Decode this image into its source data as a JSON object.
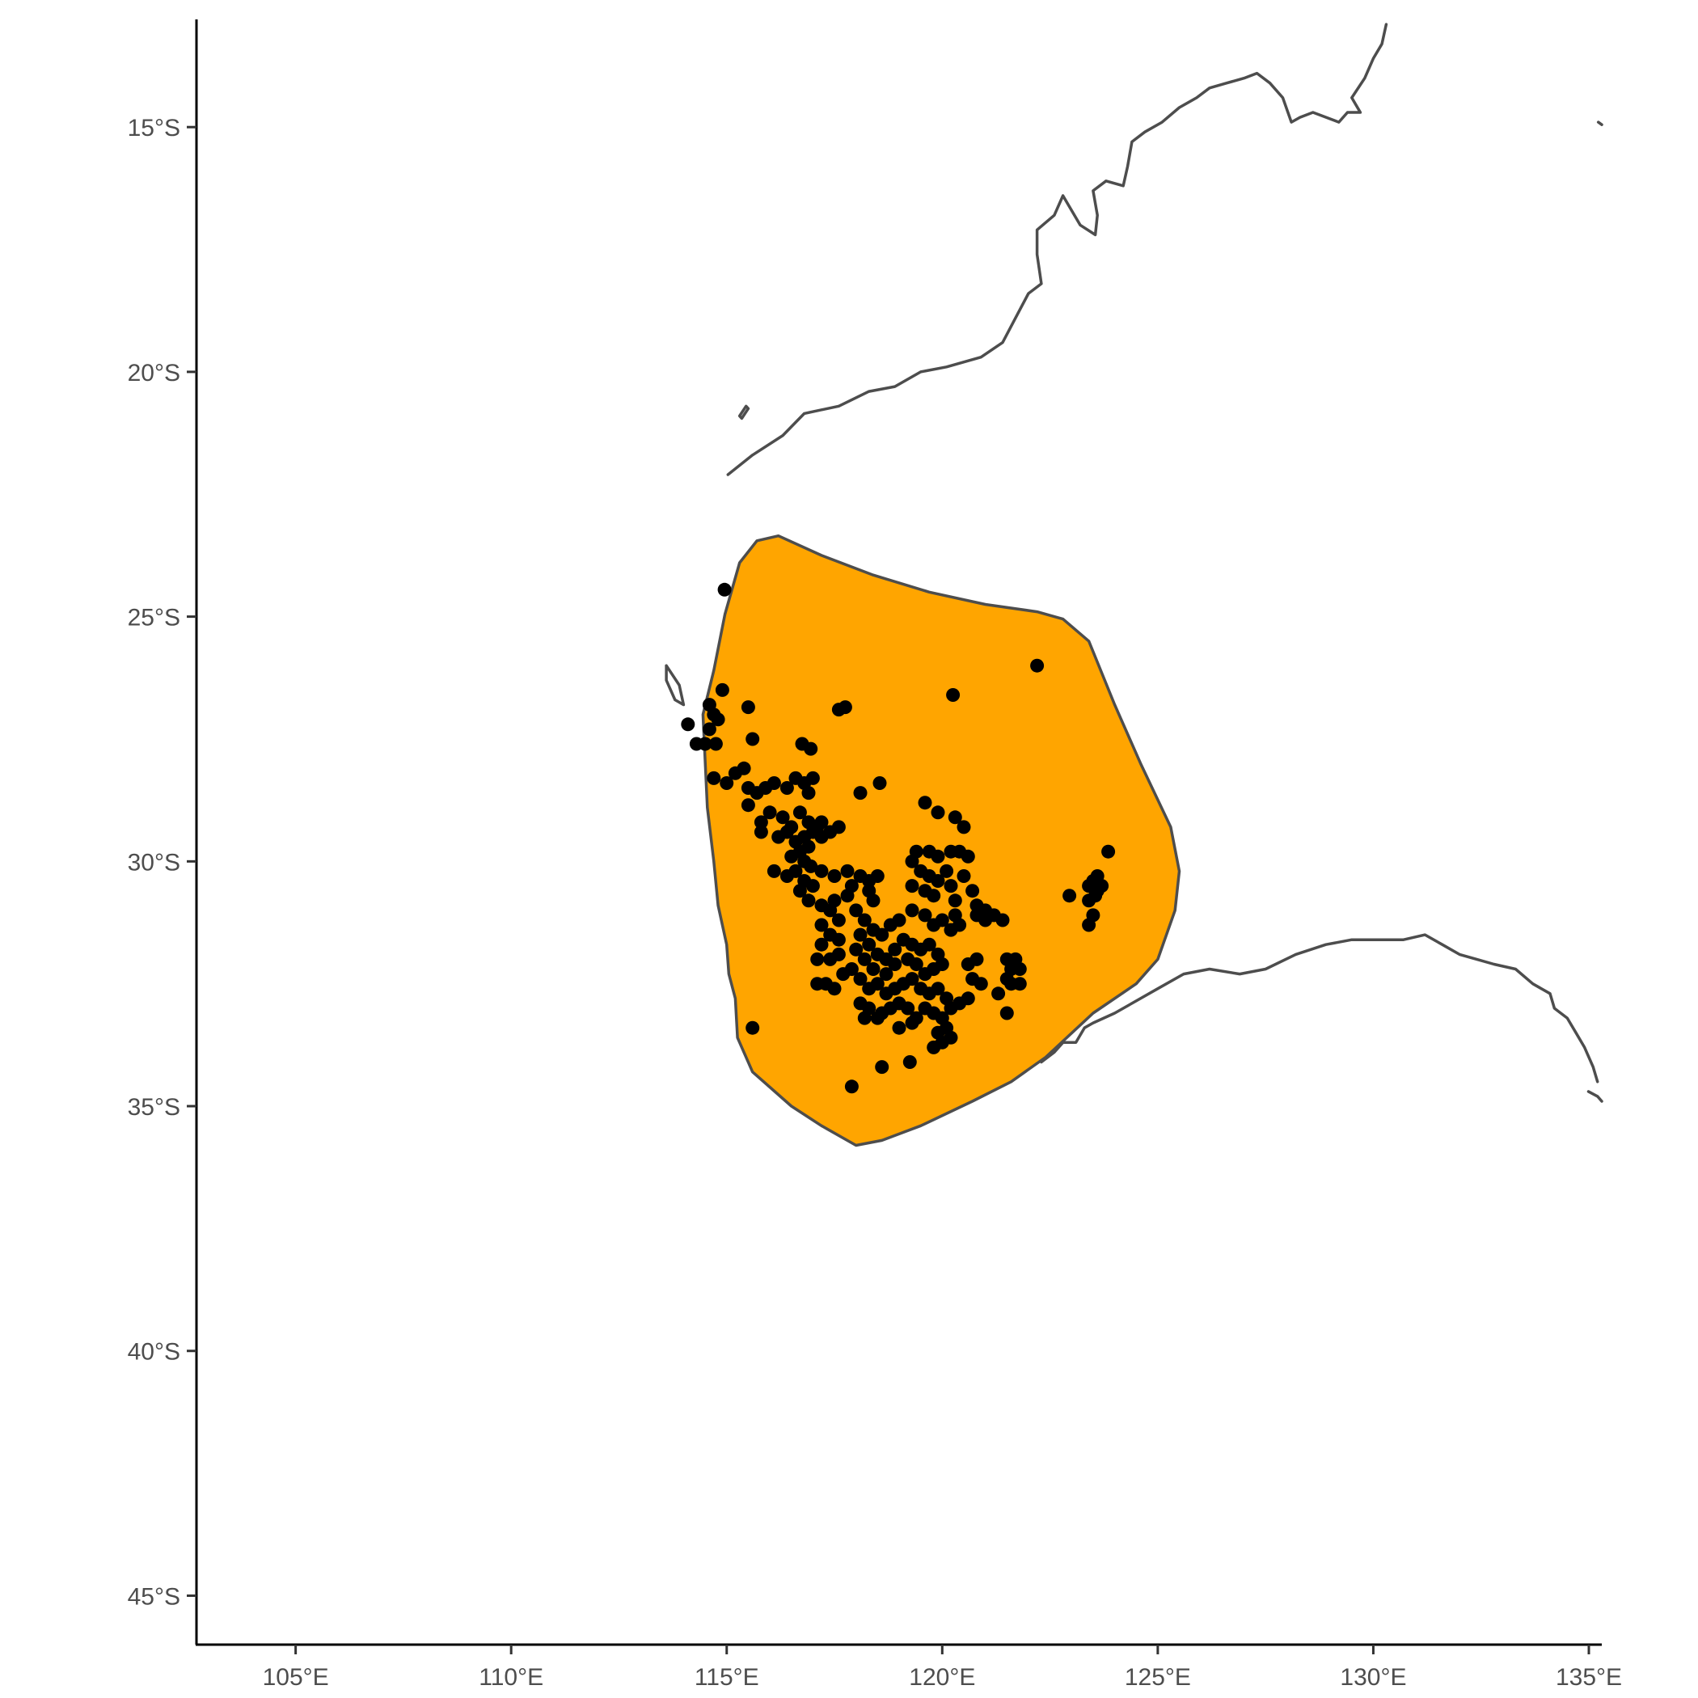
{
  "chart_data": {
    "type": "scatter",
    "title": "",
    "xlabel": "",
    "ylabel": "",
    "xlim": [
      102.7,
      135.3
    ],
    "ylim": [
      -46.0,
      -12.8
    ],
    "x_ticks": [
      {
        "value": 105,
        "label": "105°E"
      },
      {
        "value": 110,
        "label": "110°E"
      },
      {
        "value": 115,
        "label": "115°E"
      },
      {
        "value": 120,
        "label": "120°E"
      },
      {
        "value": 125,
        "label": "125°E"
      },
      {
        "value": 130,
        "label": "130°E"
      },
      {
        "value": 135,
        "label": "135°E"
      }
    ],
    "y_ticks": [
      {
        "value": -15,
        "label": "15°S"
      },
      {
        "value": -20,
        "label": "20°S"
      },
      {
        "value": -25,
        "label": "25°S"
      },
      {
        "value": -30,
        "label": "30°S"
      },
      {
        "value": -35,
        "label": "35°S"
      },
      {
        "value": -40,
        "label": "40°S"
      },
      {
        "value": -45,
        "label": "45°S"
      }
    ],
    "colors": {
      "hull_fill": "#FFA500",
      "outline": "#4d4d4d",
      "points": "#000000",
      "axis": "#000000",
      "tick_label": "#4d4d4d"
    },
    "coastline": [
      [
        115.03,
        -22.1
      ],
      [
        115.6,
        -21.7
      ],
      [
        116.3,
        -21.3
      ],
      [
        116.8,
        -20.85
      ],
      [
        117.6,
        -20.7
      ],
      [
        118.3,
        -20.4
      ],
      [
        118.9,
        -20.3
      ],
      [
        119.5,
        -20.0
      ],
      [
        120.1,
        -19.9
      ],
      [
        120.9,
        -19.7
      ],
      [
        121.4,
        -19.4
      ],
      [
        121.7,
        -18.9
      ],
      [
        122.0,
        -18.4
      ],
      [
        122.3,
        -18.2
      ],
      [
        122.2,
        -17.6
      ],
      [
        122.2,
        -17.1
      ],
      [
        122.6,
        -16.8
      ],
      [
        122.8,
        -16.4
      ],
      [
        123.2,
        -17.0
      ],
      [
        123.55,
        -17.2
      ],
      [
        123.6,
        -16.8
      ],
      [
        123.5,
        -16.3
      ],
      [
        123.8,
        -16.1
      ],
      [
        124.2,
        -16.2
      ],
      [
        124.3,
        -15.8
      ],
      [
        124.4,
        -15.3
      ],
      [
        124.7,
        -15.1
      ],
      [
        125.1,
        -14.9
      ],
      [
        125.5,
        -14.6
      ],
      [
        125.9,
        -14.4
      ],
      [
        126.2,
        -14.2
      ],
      [
        126.6,
        -14.1
      ],
      [
        127.0,
        -14.0
      ],
      [
        127.3,
        -13.9
      ],
      [
        127.6,
        -14.1
      ],
      [
        127.9,
        -14.4
      ],
      [
        128.1,
        -14.9
      ],
      [
        128.3,
        -14.8
      ],
      [
        128.6,
        -14.7
      ],
      [
        129.2,
        -14.9
      ],
      [
        129.4,
        -14.7
      ],
      [
        129.7,
        -14.7
      ],
      [
        129.5,
        -14.4
      ],
      [
        129.8,
        -14.0
      ],
      [
        130.0,
        -13.6
      ],
      [
        130.2,
        -13.3
      ],
      [
        130.3,
        -12.9
      ]
    ],
    "coastline_islands": [
      [
        [
          113.6,
          -26.0
        ],
        [
          113.9,
          -26.4
        ],
        [
          114.0,
          -26.8
        ],
        [
          113.8,
          -26.7
        ],
        [
          113.6,
          -26.3
        ],
        [
          113.6,
          -26.0
        ]
      ],
      [
        [
          115.3,
          -20.9
        ],
        [
          115.45,
          -20.7
        ],
        [
          115.5,
          -20.75
        ],
        [
          115.35,
          -20.95
        ],
        [
          115.3,
          -20.9
        ]
      ],
      [
        [
          134.99,
          -34.7
        ],
        [
          135.2,
          -34.8
        ],
        [
          135.3,
          -34.9
        ]
      ],
      [
        [
          135.22,
          -14.9
        ],
        [
          135.3,
          -14.95
        ]
      ]
    ],
    "hull_polygon": [
      [
        114.45,
        -27.0
      ],
      [
        114.7,
        -26.1
      ],
      [
        114.96,
        -24.95
      ],
      [
        115.3,
        -23.9
      ],
      [
        115.7,
        -23.45
      ],
      [
        116.2,
        -23.35
      ],
      [
        117.2,
        -23.75
      ],
      [
        118.4,
        -24.15
      ],
      [
        119.7,
        -24.5
      ],
      [
        121.0,
        -24.75
      ],
      [
        122.2,
        -24.9
      ],
      [
        122.8,
        -25.05
      ],
      [
        123.4,
        -25.5
      ],
      [
        124.0,
        -26.8
      ],
      [
        124.6,
        -28.0
      ],
      [
        125.3,
        -29.3
      ],
      [
        125.5,
        -30.2
      ],
      [
        125.4,
        -31.0
      ],
      [
        125.0,
        -32.0
      ],
      [
        124.5,
        -32.5
      ],
      [
        123.5,
        -33.1
      ],
      [
        122.4,
        -34.0
      ],
      [
        121.6,
        -34.5
      ],
      [
        120.7,
        -34.9
      ],
      [
        119.5,
        -35.4
      ],
      [
        118.6,
        -35.7
      ],
      [
        118.0,
        -35.8
      ],
      [
        117.2,
        -35.4
      ],
      [
        116.5,
        -35.0
      ],
      [
        115.6,
        -34.3
      ],
      [
        115.25,
        -33.6
      ],
      [
        115.2,
        -32.8
      ],
      [
        115.05,
        -32.3
      ],
      [
        115.0,
        -31.7
      ],
      [
        114.8,
        -30.9
      ],
      [
        114.7,
        -30.0
      ],
      [
        114.55,
        -28.9
      ],
      [
        114.45,
        -27.0
      ]
    ],
    "points": [
      [
        114.95,
        -24.45
      ],
      [
        122.2,
        -26.0
      ],
      [
        120.25,
        -26.6
      ],
      [
        114.9,
        -26.5
      ],
      [
        115.5,
        -26.85
      ],
      [
        117.6,
        -26.9
      ],
      [
        117.75,
        -26.85
      ],
      [
        114.1,
        -27.2
      ],
      [
        114.6,
        -26.8
      ],
      [
        114.7,
        -27.0
      ],
      [
        114.6,
        -27.3
      ],
      [
        114.8,
        -27.1
      ],
      [
        114.5,
        -27.6
      ],
      [
        114.75,
        -27.6
      ],
      [
        114.3,
        -27.6
      ],
      [
        115.6,
        -27.5
      ],
      [
        116.75,
        -27.6
      ],
      [
        116.95,
        -27.7
      ],
      [
        118.55,
        -28.4
      ],
      [
        118.1,
        -28.6
      ],
      [
        114.7,
        -28.3
      ],
      [
        115.0,
        -28.4
      ],
      [
        115.2,
        -28.2
      ],
      [
        115.4,
        -28.1
      ],
      [
        115.5,
        -28.5
      ],
      [
        115.7,
        -28.6
      ],
      [
        115.9,
        -28.5
      ],
      [
        116.1,
        -28.4
      ],
      [
        116.4,
        -28.5
      ],
      [
        116.6,
        -28.3
      ],
      [
        116.8,
        -28.4
      ],
      [
        116.9,
        -28.6
      ],
      [
        117.0,
        -28.3
      ],
      [
        115.5,
        -28.85
      ],
      [
        115.8,
        -29.2
      ],
      [
        116.0,
        -29.0
      ],
      [
        116.3,
        -29.1
      ],
      [
        116.5,
        -29.3
      ],
      [
        116.7,
        -29.0
      ],
      [
        116.9,
        -29.2
      ],
      [
        115.8,
        -29.4
      ],
      [
        116.2,
        -29.5
      ],
      [
        116.4,
        -29.4
      ],
      [
        116.6,
        -29.6
      ],
      [
        116.7,
        -29.8
      ],
      [
        116.8,
        -29.5
      ],
      [
        116.9,
        -29.7
      ],
      [
        117.0,
        -29.4
      ],
      [
        117.1,
        -29.3
      ],
      [
        117.2,
        -29.5
      ],
      [
        116.5,
        -29.9
      ],
      [
        116.8,
        -30.0
      ],
      [
        116.95,
        -30.1
      ],
      [
        116.6,
        -30.2
      ],
      [
        116.8,
        -30.4
      ],
      [
        117.0,
        -30.5
      ],
      [
        116.7,
        -30.6
      ],
      [
        116.9,
        -30.8
      ],
      [
        117.2,
        -29.2
      ],
      [
        117.4,
        -29.4
      ],
      [
        117.6,
        -29.3
      ],
      [
        116.1,
        -30.2
      ],
      [
        116.4,
        -30.3
      ],
      [
        119.6,
        -28.8
      ],
      [
        119.9,
        -29.0
      ],
      [
        120.3,
        -29.1
      ],
      [
        120.5,
        -29.3
      ],
      [
        120.6,
        -29.9
      ],
      [
        120.4,
        -29.8
      ],
      [
        120.2,
        -29.8
      ],
      [
        119.9,
        -29.9
      ],
      [
        119.7,
        -29.8
      ],
      [
        119.4,
        -29.8
      ],
      [
        119.3,
        -30.0
      ],
      [
        119.5,
        -30.2
      ],
      [
        119.7,
        -30.3
      ],
      [
        119.9,
        -30.4
      ],
      [
        120.2,
        -30.5
      ],
      [
        120.1,
        -30.2
      ],
      [
        119.8,
        -30.7
      ],
      [
        119.6,
        -30.6
      ],
      [
        119.3,
        -30.5
      ],
      [
        120.5,
        -30.3
      ],
      [
        120.7,
        -30.6
      ],
      [
        120.8,
        -30.9
      ],
      [
        121.0,
        -31.0
      ],
      [
        121.2,
        -31.1
      ],
      [
        121.0,
        -31.2
      ],
      [
        120.8,
        -31.1
      ],
      [
        121.4,
        -31.2
      ],
      [
        120.3,
        -30.8
      ],
      [
        120.3,
        -31.1
      ],
      [
        120.4,
        -31.3
      ],
      [
        117.2,
        -30.2
      ],
      [
        117.5,
        -30.3
      ],
      [
        117.8,
        -30.2
      ],
      [
        117.9,
        -30.5
      ],
      [
        117.8,
        -30.7
      ],
      [
        118.1,
        -30.3
      ],
      [
        118.3,
        -30.4
      ],
      [
        118.5,
        -30.3
      ],
      [
        118.3,
        -30.6
      ],
      [
        118.4,
        -30.8
      ],
      [
        117.5,
        -30.8
      ],
      [
        117.2,
        -30.9
      ],
      [
        117.4,
        -31.0
      ],
      [
        117.6,
        -31.2
      ],
      [
        117.2,
        -31.3
      ],
      [
        117.4,
        -31.5
      ],
      [
        117.6,
        -31.6
      ],
      [
        117.2,
        -31.7
      ],
      [
        117.4,
        -32.0
      ],
      [
        117.6,
        -31.9
      ],
      [
        117.1,
        -32.0
      ],
      [
        117.7,
        -32.3
      ],
      [
        117.1,
        -32.5
      ],
      [
        117.5,
        -32.6
      ],
      [
        117.3,
        -32.5
      ],
      [
        118.0,
        -31.0
      ],
      [
        118.2,
        -31.2
      ],
      [
        118.4,
        -31.4
      ],
      [
        118.6,
        -31.5
      ],
      [
        118.8,
        -31.3
      ],
      [
        119.0,
        -31.2
      ],
      [
        119.3,
        -31.0
      ],
      [
        119.6,
        -31.1
      ],
      [
        119.8,
        -31.3
      ],
      [
        120.0,
        -31.2
      ],
      [
        120.2,
        -31.4
      ],
      [
        118.1,
        -31.5
      ],
      [
        118.3,
        -31.7
      ],
      [
        118.5,
        -31.9
      ],
      [
        118.7,
        -32.0
      ],
      [
        118.9,
        -31.8
      ],
      [
        119.1,
        -31.6
      ],
      [
        119.3,
        -31.7
      ],
      [
        119.5,
        -31.8
      ],
      [
        119.7,
        -31.7
      ],
      [
        119.9,
        -31.9
      ],
      [
        120.0,
        -32.1
      ],
      [
        119.8,
        -32.2
      ],
      [
        119.6,
        -32.3
      ],
      [
        119.4,
        -32.1
      ],
      [
        119.2,
        -32.0
      ],
      [
        118.9,
        -32.1
      ],
      [
        118.7,
        -32.3
      ],
      [
        118.4,
        -32.2
      ],
      [
        118.2,
        -32.0
      ],
      [
        118.0,
        -31.8
      ],
      [
        117.9,
        -32.2
      ],
      [
        118.1,
        -32.4
      ],
      [
        118.3,
        -32.6
      ],
      [
        118.5,
        -32.5
      ],
      [
        118.7,
        -32.7
      ],
      [
        118.9,
        -32.6
      ],
      [
        119.1,
        -32.5
      ],
      [
        119.3,
        -32.4
      ],
      [
        119.5,
        -32.6
      ],
      [
        119.7,
        -32.7
      ],
      [
        119.9,
        -32.6
      ],
      [
        120.1,
        -32.8
      ],
      [
        118.1,
        -32.9
      ],
      [
        118.3,
        -33.0
      ],
      [
        118.6,
        -33.1
      ],
      [
        118.8,
        -33.0
      ],
      [
        119.0,
        -32.9
      ],
      [
        119.2,
        -33.0
      ],
      [
        119.4,
        -33.2
      ],
      [
        119.6,
        -33.0
      ],
      [
        119.8,
        -33.1
      ],
      [
        120.0,
        -33.2
      ],
      [
        120.2,
        -33.0
      ],
      [
        120.4,
        -32.9
      ],
      [
        120.6,
        -32.8
      ],
      [
        119.0,
        -33.4
      ],
      [
        119.3,
        -33.3
      ],
      [
        118.2,
        -33.2
      ],
      [
        118.5,
        -33.2
      ],
      [
        119.9,
        -33.5
      ],
      [
        120.1,
        -33.4
      ],
      [
        120.0,
        -33.7
      ],
      [
        120.2,
        -33.6
      ],
      [
        119.8,
        -33.8
      ],
      [
        120.6,
        -32.1
      ],
      [
        120.8,
        -32.0
      ],
      [
        120.7,
        -32.4
      ],
      [
        120.9,
        -32.5
      ],
      [
        121.3,
        -32.7
      ],
      [
        121.5,
        -32.4
      ],
      [
        121.5,
        -32.0
      ],
      [
        121.7,
        -32.0
      ],
      [
        121.6,
        -32.2
      ],
      [
        121.8,
        -32.2
      ],
      [
        121.6,
        -32.5
      ],
      [
        121.8,
        -32.5
      ],
      [
        121.5,
        -33.1
      ],
      [
        115.6,
        -33.4
      ],
      [
        118.6,
        -34.2
      ],
      [
        119.25,
        -34.1
      ],
      [
        117.9,
        -34.6
      ],
      [
        122.95,
        -30.7
      ],
      [
        123.4,
        -30.5
      ],
      [
        123.5,
        -30.4
      ],
      [
        123.6,
        -30.3
      ],
      [
        123.7,
        -30.5
      ],
      [
        123.55,
        -30.7
      ],
      [
        123.4,
        -30.8
      ],
      [
        123.5,
        -31.1
      ],
      [
        123.4,
        -31.3
      ],
      [
        123.85,
        -29.8
      ],
      [
        123.6,
        -30.6
      ]
    ]
  }
}
